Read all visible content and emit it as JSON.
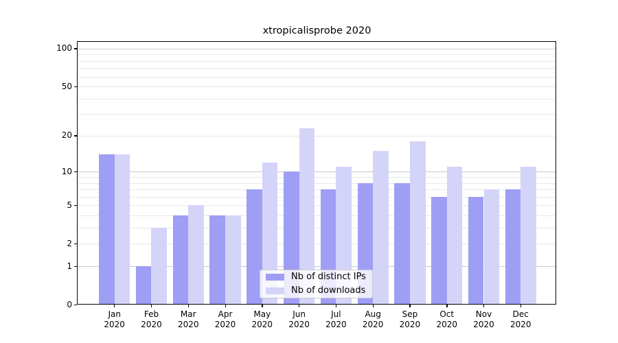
{
  "chart_data": {
    "type": "bar",
    "title": "xtropicalisprobe 2020",
    "categories": [
      "Jan",
      "Feb",
      "Mar",
      "Apr",
      "May",
      "Jun",
      "Jul",
      "Aug",
      "Sep",
      "Oct",
      "Nov",
      "Dec"
    ],
    "year_label": "2020",
    "series": [
      {
        "name": "Nb of distinct IPs",
        "color": "#9e9ef5",
        "values": [
          14,
          1,
          4,
          4,
          7,
          10,
          7,
          8,
          8,
          6,
          6,
          7
        ]
      },
      {
        "name": "Nb of downloads",
        "color": "#d4d4f9",
        "values": [
          14,
          3,
          5,
          4,
          12,
          23,
          11,
          15,
          18,
          11,
          7,
          11
        ]
      }
    ],
    "yscale": "log1p",
    "ylim": [
      0,
      113
    ],
    "y_ticks": [
      100,
      50,
      20,
      10,
      5,
      2,
      1,
      0
    ],
    "y_tick_labels": [
      "100",
      "50",
      "20",
      "10",
      "5",
      "2",
      "1",
      "0"
    ],
    "minor_grid_values": [
      2,
      3,
      4,
      5,
      6,
      7,
      8,
      9,
      20,
      30,
      40,
      50,
      60,
      70,
      80,
      90
    ],
    "major_grid_values": [
      1,
      10,
      100
    ],
    "grid": "horizontal",
    "legend_position": "lower-center",
    "colors": {
      "major_grid": "#c9c9c9",
      "minor_grid": "#e7e7e7",
      "spine": "#000000"
    }
  }
}
